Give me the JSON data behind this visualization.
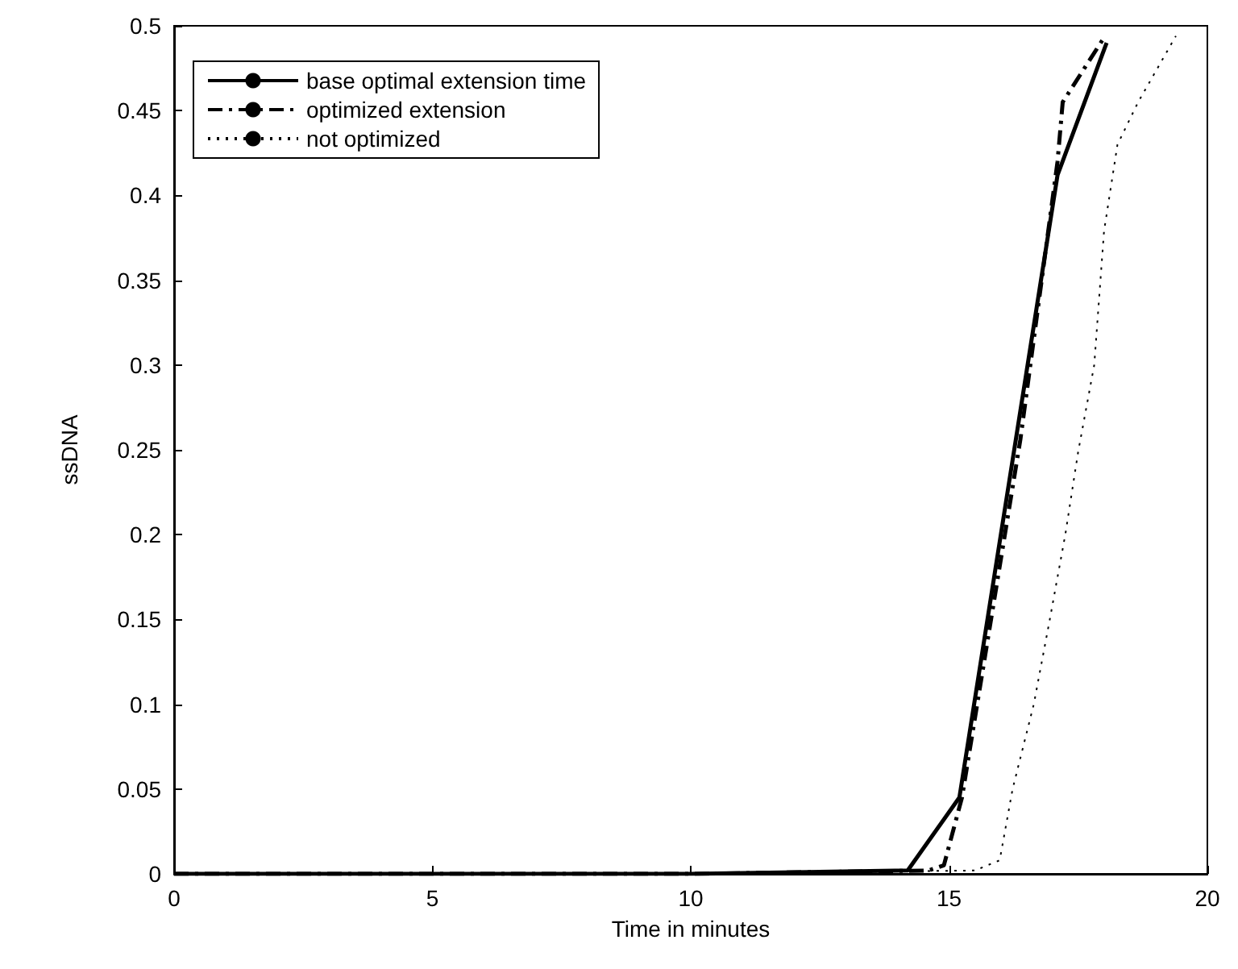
{
  "chart_data": {
    "type": "line",
    "xlabel": "Time in minutes",
    "ylabel": "ssDNA",
    "xlim": [
      0,
      20
    ],
    "ylim": [
      0,
      0.5
    ],
    "xticks": [
      0,
      5,
      10,
      15,
      20
    ],
    "yticks": [
      0,
      0.05,
      0.1,
      0.15,
      0.2,
      0.25,
      0.3,
      0.35,
      0.4,
      0.45,
      0.5
    ],
    "grid": false,
    "legend": "top left",
    "marker": "none",
    "series": [
      {
        "name": "base optimal extension time",
        "color": "#000000",
        "line_style": "solid",
        "x": [
          0,
          5,
          10,
          14.2,
          15.2,
          17.1,
          18.05
        ],
        "values": [
          0,
          0,
          0,
          0.002,
          0.045,
          0.412,
          0.49
        ]
      },
      {
        "name": "optimized extension",
        "color": "#000000",
        "line_style": "dashed",
        "x": [
          0,
          5,
          10,
          14.6,
          14.9,
          15.25,
          16.38,
          17.1,
          17.2,
          18.02
        ],
        "values": [
          0,
          0,
          0,
          0.002,
          0.005,
          0.045,
          0.256,
          0.42,
          0.455,
          0.494
        ]
      },
      {
        "name": "not optimized",
        "color": "#000000",
        "line_style": "dotted",
        "x": [
          0,
          5,
          10,
          15.5,
          15.98,
          16.23,
          16.64,
          16.95,
          17.25,
          17.5,
          17.81,
          18.0,
          18.26,
          18.66,
          19.39
        ],
        "values": [
          0,
          0,
          0,
          0.002,
          0.008,
          0.05,
          0.1,
          0.15,
          0.2,
          0.249,
          0.3,
          0.379,
          0.43,
          0.455,
          0.494
        ]
      }
    ]
  }
}
